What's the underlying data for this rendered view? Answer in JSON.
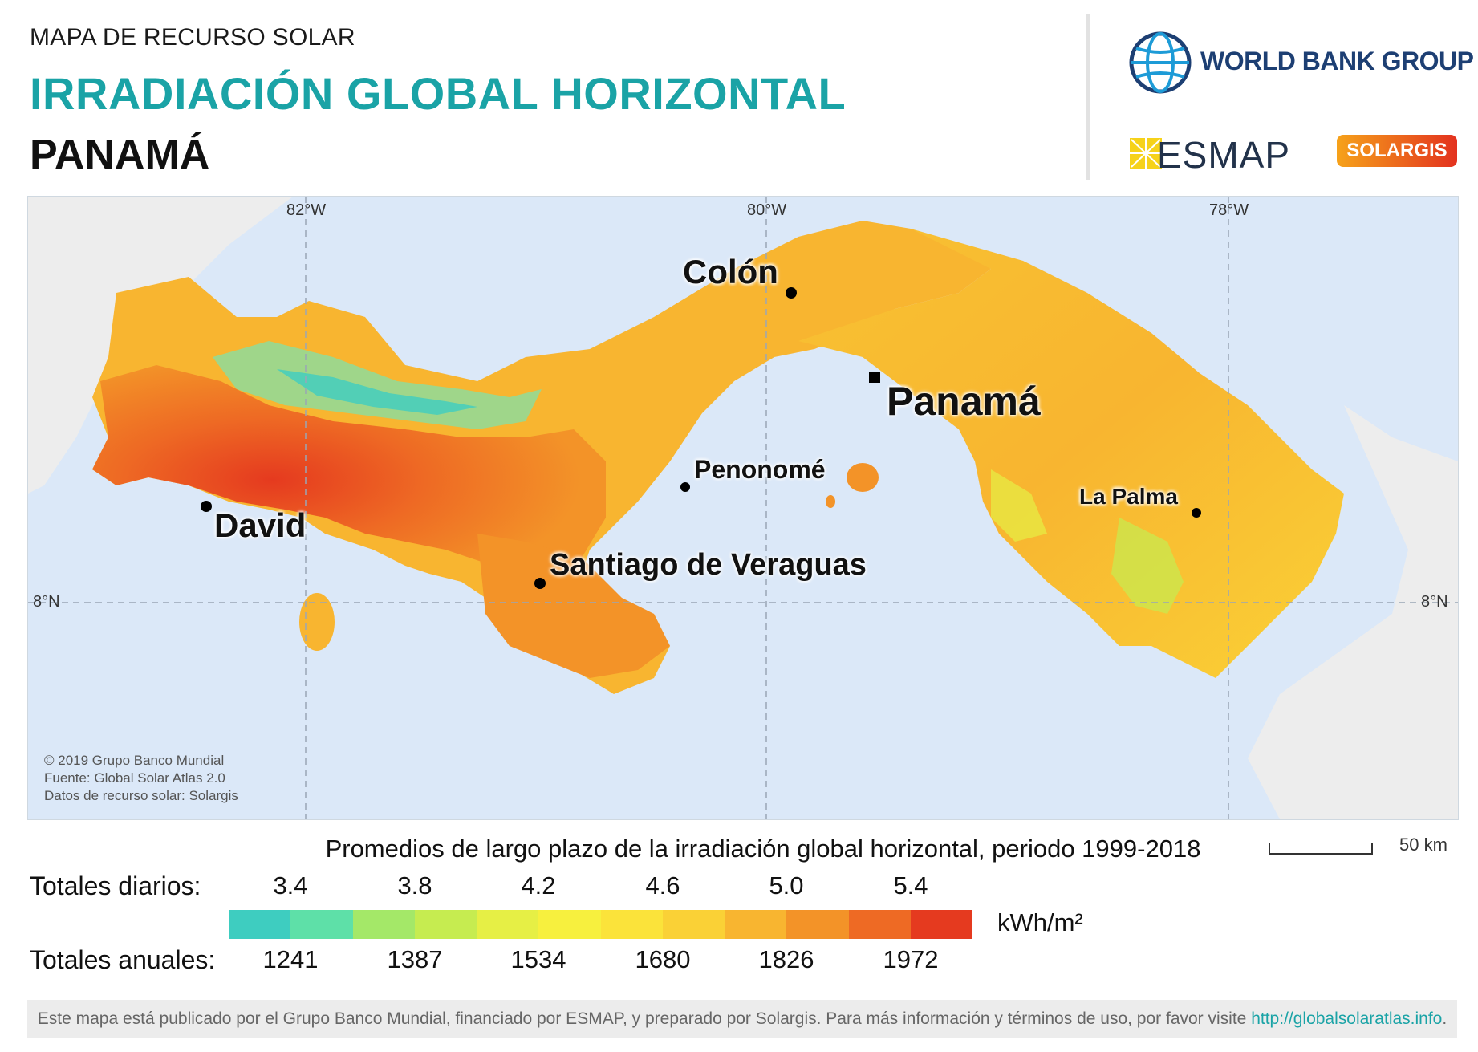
{
  "header": {
    "subtitle": "MAPA DE RECURSO SOLAR",
    "title": "IRRADIACIÓN GLOBAL HORIZONTAL",
    "country": "PANAMÁ"
  },
  "logos": {
    "world_bank": "WORLD BANK GROUP",
    "esmap": "ESMAP",
    "solargis": "SOLARGIS"
  },
  "map": {
    "graticule": {
      "lon_labels": [
        "82°W",
        "80°W",
        "78°W"
      ],
      "lat_label": "8°N"
    },
    "cities": [
      {
        "name": "Colón",
        "size": "large",
        "marker": "dot"
      },
      {
        "name": "Panamá",
        "size": "xlarge",
        "marker": "square"
      },
      {
        "name": "Penonomé",
        "size": "medium",
        "marker": "dot"
      },
      {
        "name": "David",
        "size": "large",
        "marker": "dot"
      },
      {
        "name": "Santiago de Veraguas",
        "size": "large",
        "marker": "dot"
      },
      {
        "name": "La Palma",
        "size": "small",
        "marker": "dot"
      }
    ],
    "credits": [
      "© 2019 Grupo Banco Mundial",
      "Fuente: Global Solar Atlas 2.0",
      "Datos de recurso solar: Solargis"
    ]
  },
  "legend": {
    "title": "Promedios de largo plazo de la irradiación global horizontal, periodo 1999-2018",
    "daily_label": "Totales diarios:",
    "annual_label": "Totales anuales:",
    "daily_ticks": [
      "3.4",
      "3.8",
      "4.2",
      "4.6",
      "5.0",
      "5.4"
    ],
    "annual_ticks": [
      "1241",
      "1387",
      "1534",
      "1680",
      "1826",
      "1972"
    ],
    "unit": "kWh/m²",
    "colors": [
      "#3ecdc0",
      "#5ee0a8",
      "#a4e868",
      "#c6ec50",
      "#e6ef45",
      "#f7f03e",
      "#fbe33a",
      "#fad136",
      "#f8b530",
      "#f39328",
      "#ee6a24",
      "#e53a1f"
    ],
    "scale_label": "50 km"
  },
  "footer": {
    "text": "Este mapa está publicado por el Grupo Banco Mundial, financiado por ESMAP, y preparado por Solargis. Para más información y términos de uso, por favor visite",
    "link": "http://globalsolaratlas.info",
    "end": "."
  }
}
